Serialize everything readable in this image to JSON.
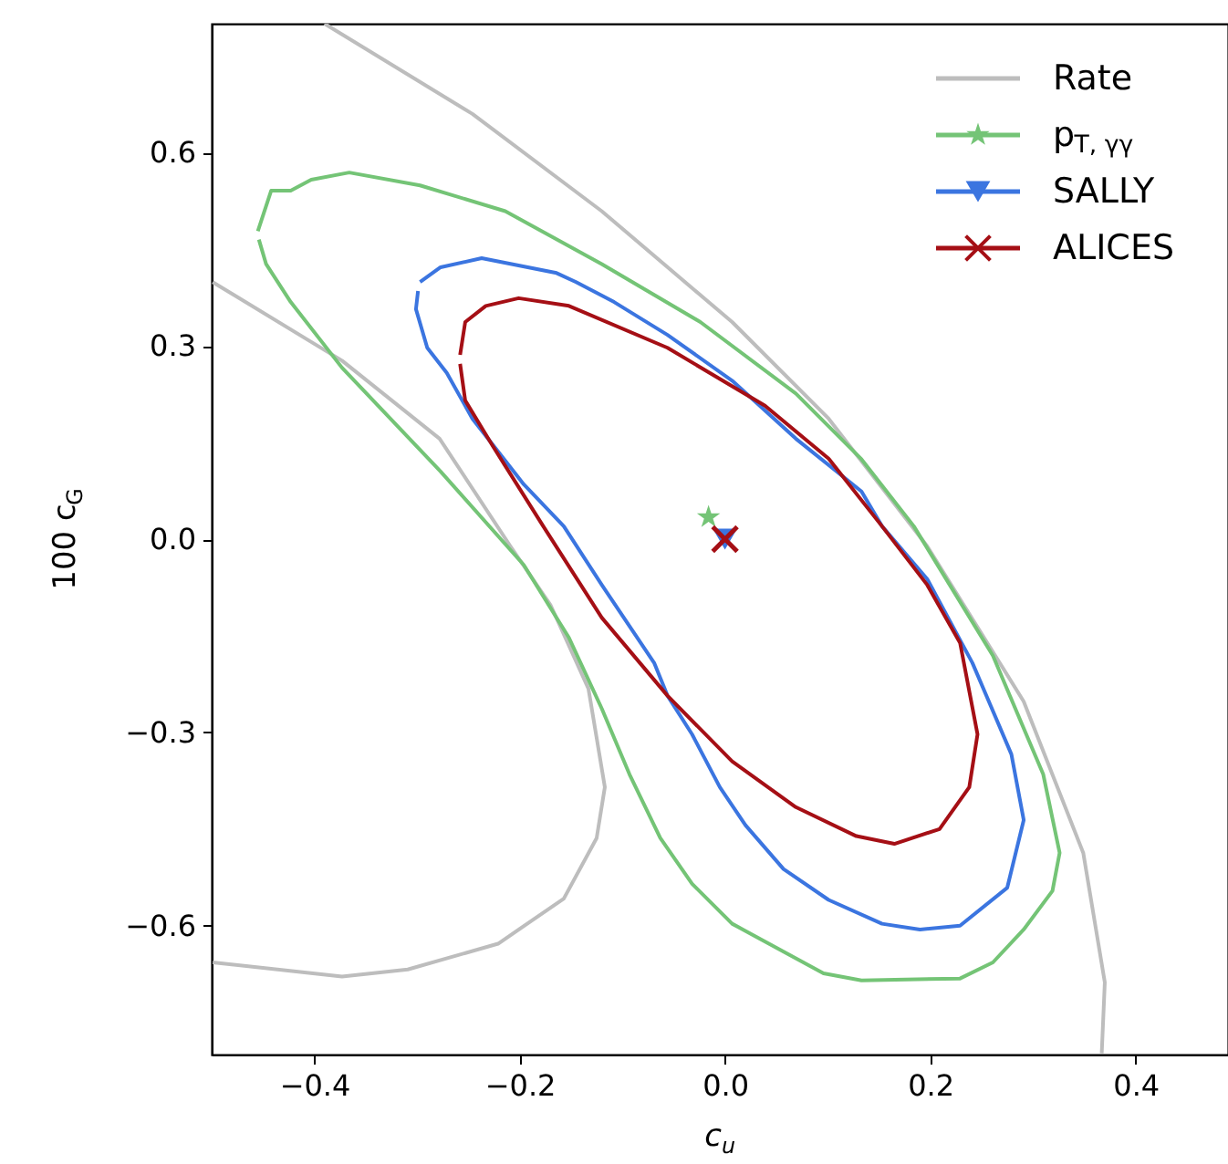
{
  "chart_data": {
    "type": "line",
    "xlabel": "c$_{u}$",
    "ylabel": "100 c$_{G}$",
    "xlim": [
      -0.5,
      0.49
    ],
    "ylim": [
      -0.8,
      0.8
    ],
    "xticks": [
      {
        "value": -0.4,
        "label": "−0.4"
      },
      {
        "value": -0.2,
        "label": "−0.2"
      },
      {
        "value": 0,
        "label": "0.0"
      },
      {
        "value": 0.2,
        "label": "0.2"
      },
      {
        "value": 0.4,
        "label": "0.4"
      }
    ],
    "yticks": [
      {
        "value": -0.6,
        "label": "−0.6"
      },
      {
        "value": -0.3,
        "label": "−0.3"
      },
      {
        "value": 0,
        "label": "0.0"
      },
      {
        "value": 0.3,
        "label": "0.3"
      },
      {
        "value": 0.6,
        "label": "0.6"
      }
    ],
    "grid": false,
    "legend": "top right",
    "line_style": "solid",
    "series": [
      {
        "name": "Rate",
        "color": "#bdbdbd",
        "x": [
          -0.39,
          -0.246,
          -0.12,
          0.007,
          0.101,
          0.197,
          0.291,
          0.349,
          0.37,
          0.367,
          null,
          -0.499,
          -0.373,
          -0.278,
          -0.209,
          -0.17,
          -0.133,
          -0.117,
          -0.125,
          -0.157,
          -0.221,
          -0.309,
          -0.373,
          -0.499
        ],
        "values": [
          0.8,
          0.66,
          0.509,
          0.337,
          0.187,
          -0.011,
          -0.252,
          -0.487,
          -0.688,
          -0.798,
          null,
          0.399,
          0.277,
          0.156,
          -0.011,
          -0.102,
          -0.232,
          -0.385,
          -0.464,
          -0.558,
          -0.628,
          -0.668,
          -0.679,
          -0.657
        ]
      },
      {
        "name": "p$_{T, γγ}$",
        "color": "#74c476",
        "x": [
          -0.455,
          -0.442,
          -0.423,
          -0.403,
          -0.366,
          -0.297,
          -0.214,
          -0.12,
          -0.024,
          0.069,
          0.133,
          0.184,
          0.261,
          0.31,
          0.326,
          0.319,
          0.291,
          0.261,
          0.229,
          0.133,
          0.096,
          0.007,
          -0.032,
          -0.063,
          -0.093,
          -0.12,
          -0.152,
          -0.196,
          -0.277,
          -0.373,
          -0.423,
          -0.447,
          -0.454
        ],
        "values": [
          0.478,
          0.541,
          0.541,
          0.558,
          0.569,
          0.549,
          0.509,
          0.427,
          0.337,
          0.226,
          0.124,
          0.02,
          -0.181,
          -0.365,
          -0.487,
          -0.546,
          -0.606,
          -0.657,
          -0.682,
          -0.685,
          -0.674,
          -0.597,
          -0.535,
          -0.464,
          -0.365,
          -0.263,
          -0.153,
          -0.04,
          0.105,
          0.266,
          0.368,
          0.427,
          0.465
        ]
      },
      {
        "name": "SALLY",
        "color": "#3b75e0",
        "x": [
          -0.297,
          -0.277,
          -0.237,
          -0.164,
          -0.145,
          -0.108,
          -0.056,
          0.007,
          0.069,
          0.133,
          0.153,
          0.197,
          0.241,
          0.279,
          0.291,
          0.275,
          0.229,
          0.19,
          0.153,
          0.101,
          0.057,
          0.02,
          -0.005,
          -0.032,
          -0.056,
          -0.069,
          -0.12,
          -0.157,
          -0.196,
          -0.246,
          -0.271,
          -0.29,
          -0.301,
          -0.299
        ],
        "values": [
          0.399,
          0.422,
          0.436,
          0.413,
          0.399,
          0.368,
          0.317,
          0.246,
          0.156,
          0.074,
          0.02,
          -0.062,
          -0.192,
          -0.334,
          -0.436,
          -0.541,
          -0.6,
          -0.606,
          -0.597,
          -0.56,
          -0.512,
          -0.444,
          -0.385,
          -0.303,
          -0.243,
          -0.192,
          -0.071,
          0.02,
          0.085,
          0.187,
          0.258,
          0.297,
          0.357,
          0.385
        ]
      },
      {
        "name": "ALICES",
        "color": "#a50f15",
        "x": [
          -0.258,
          -0.253,
          -0.233,
          -0.201,
          -0.152,
          -0.056,
          0.039,
          0.101,
          0.153,
          0.197,
          0.229,
          0.246,
          0.238,
          0.209,
          0.165,
          0.128,
          0.069,
          0.007,
          -0.056,
          -0.12,
          -0.177,
          -0.226,
          -0.253,
          -0.258
        ],
        "values": [
          0.286,
          0.337,
          0.362,
          0.374,
          0.362,
          0.297,
          0.207,
          0.125,
          0.02,
          -0.071,
          -0.161,
          -0.303,
          -0.385,
          -0.45,
          -0.473,
          -0.461,
          -0.416,
          -0.345,
          -0.243,
          -0.122,
          0.02,
          0.144,
          0.215,
          0.272
        ]
      },
      {
        "type": "scatter",
        "marker": "star",
        "color": "#74c476",
        "x": [
          -0.016
        ],
        "values": [
          0.034
        ]
      },
      {
        "type": "scatter",
        "marker": "triangle",
        "color": "#3b75e0",
        "x": [
          0.0
        ],
        "values": [
          0.0
        ]
      },
      {
        "type": "scatter",
        "marker": "cross",
        "color": "#a50f15",
        "x": [
          0.0
        ],
        "values": [
          0.0
        ]
      }
    ]
  }
}
